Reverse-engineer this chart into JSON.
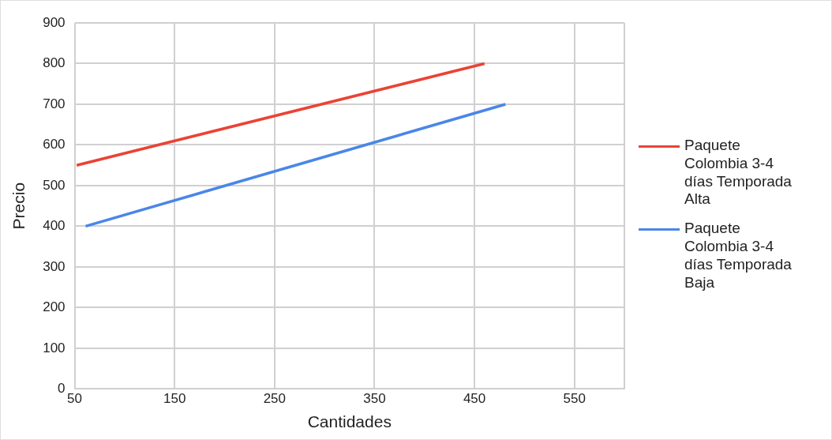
{
  "chart_data": {
    "type": "line",
    "xlabel": "Cantidades",
    "ylabel": "Precio",
    "xlim": [
      50,
      600
    ],
    "xticks": [
      50,
      150,
      250,
      350,
      450,
      550,
      {
        "value": 600,
        "label": null
      }
    ],
    "ylim": [
      0,
      900
    ],
    "yticks": [
      0,
      100,
      200,
      300,
      400,
      500,
      600,
      700,
      800,
      900
    ],
    "grid": true,
    "legend": "right",
    "marker": "none",
    "series": [
      {
        "name": "Paquete Colombia 3-4 días Temporada Alta",
        "color": "#ea4335",
        "x": [
          52,
          460
        ],
        "values": [
          550,
          800
        ]
      },
      {
        "name": "Paquete Colombia 3-4 días Temporada Baja",
        "color": "#4a86e8",
        "x": [
          61,
          481
        ],
        "values": [
          400,
          700
        ]
      }
    ]
  }
}
